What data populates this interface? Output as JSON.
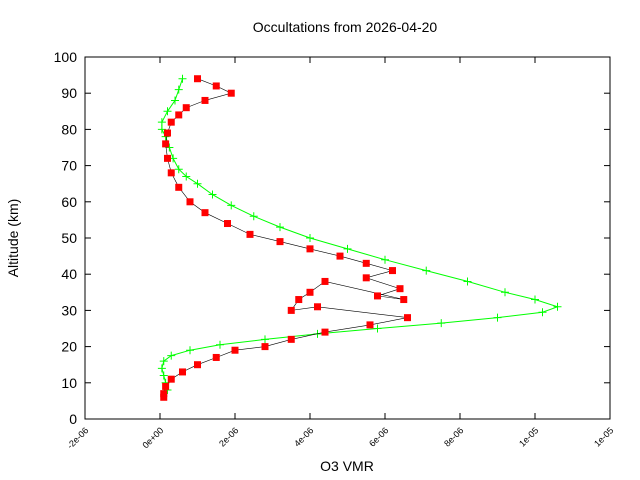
{
  "chart_data": {
    "type": "scatter",
    "title": "Occultations from 2026-04-20",
    "xlabel": "O3 VMR",
    "ylabel": "Altitude (km)",
    "xlim": [
      -2e-06,
      1.2e-05
    ],
    "ylim": [
      0,
      100
    ],
    "xticks": [
      "-2e-06",
      "0e+00",
      "2e-06",
      "4e-06",
      "6e-06",
      "8e-06",
      "1e-05",
      "1e-05"
    ],
    "yticks": [
      "0",
      "10",
      "20",
      "30",
      "40",
      "50",
      "60",
      "70",
      "80",
      "90",
      "100"
    ],
    "grid": false,
    "legend": "none",
    "colors": {
      "green_series": "#00ff00",
      "red_series": "#ff0000"
    },
    "series": [
      {
        "marker": "plus",
        "color": "#00ff00",
        "points": [
          [
            6e-07,
            94
          ],
          [
            5e-07,
            91
          ],
          [
            4e-07,
            88
          ],
          [
            2e-07,
            85
          ],
          [
            5e-08,
            82
          ],
          [
            5e-08,
            80
          ],
          [
            1.5e-07,
            78
          ],
          [
            2.5e-07,
            75
          ],
          [
            3.5e-07,
            72
          ],
          [
            5e-07,
            69
          ],
          [
            7e-07,
            67
          ],
          [
            1e-06,
            65
          ],
          [
            1.4e-06,
            62
          ],
          [
            1.9e-06,
            59
          ],
          [
            2.5e-06,
            56
          ],
          [
            3.2e-06,
            53
          ],
          [
            4e-06,
            50
          ],
          [
            5e-06,
            47
          ],
          [
            6e-06,
            44
          ],
          [
            7.1e-06,
            41
          ],
          [
            8.2e-06,
            38
          ],
          [
            9.2e-06,
            35
          ],
          [
            1e-05,
            33
          ],
          [
            1.06e-05,
            31
          ],
          [
            1.02e-05,
            29.5
          ],
          [
            9e-06,
            28
          ],
          [
            7.5e-06,
            26.5
          ],
          [
            5.8e-06,
            25
          ],
          [
            4.2e-06,
            23.5
          ],
          [
            2.8e-06,
            22
          ],
          [
            1.6e-06,
            20.5
          ],
          [
            8e-07,
            19
          ],
          [
            3e-07,
            17.5
          ],
          [
            1e-07,
            16
          ],
          [
            5e-08,
            14
          ],
          [
            1e-07,
            12
          ],
          [
            1.5e-07,
            10
          ],
          [
            2e-07,
            8
          ]
        ]
      },
      {
        "marker": "square",
        "color": "#ff0000",
        "points": [
          [
            1e-06,
            94
          ],
          [
            1.5e-06,
            92
          ],
          [
            1.9e-06,
            90
          ],
          [
            1.2e-06,
            88
          ],
          [
            7e-07,
            86
          ],
          [
            5e-07,
            84
          ],
          [
            3e-07,
            82
          ],
          [
            2e-07,
            79
          ],
          [
            1.5e-07,
            76
          ],
          [
            2e-07,
            72
          ],
          [
            3e-07,
            68
          ],
          [
            5e-07,
            64
          ],
          [
            8e-07,
            60
          ],
          [
            1.2e-06,
            57
          ],
          [
            1.8e-06,
            54
          ],
          [
            2.4e-06,
            51
          ],
          [
            3.2e-06,
            49
          ],
          [
            4e-06,
            47
          ],
          [
            4.8e-06,
            45
          ],
          [
            5.5e-06,
            43
          ],
          [
            6.2e-06,
            41
          ],
          [
            5.5e-06,
            39
          ],
          [
            6.4e-06,
            36
          ],
          [
            5.8e-06,
            34
          ],
          [
            6.5e-06,
            33
          ],
          [
            4.4e-06,
            38
          ],
          [
            4e-06,
            35
          ],
          [
            3.7e-06,
            33
          ],
          [
            3.5e-06,
            30
          ],
          [
            4.2e-06,
            31
          ],
          [
            6.6e-06,
            28
          ],
          [
            5.6e-06,
            26
          ],
          [
            4.4e-06,
            24
          ],
          [
            3.5e-06,
            22
          ],
          [
            2.8e-06,
            20
          ],
          [
            2e-06,
            19
          ],
          [
            1.5e-06,
            17
          ],
          [
            1e-06,
            15
          ],
          [
            6e-07,
            13
          ],
          [
            3e-07,
            11
          ],
          [
            1.5e-07,
            9
          ],
          [
            1e-07,
            7
          ],
          [
            1e-07,
            6
          ]
        ]
      }
    ]
  }
}
